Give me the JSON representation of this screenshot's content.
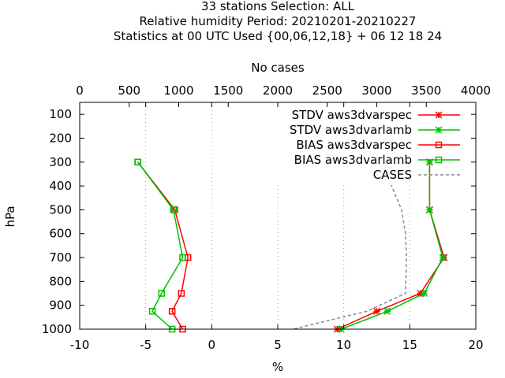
{
  "chart_data": {
    "type": "line",
    "title_lines": [
      "33 stations Selection: ALL",
      "Relative humidity  Period: 20210201-20210227",
      "Statistics at 00 UTC  Used {00,06,12,18} + 06 12 18 24"
    ],
    "xlabel": "%",
    "x2label": "No cases",
    "ylabel": "hPa",
    "xlim": [
      -10,
      20
    ],
    "x2lim": [
      0,
      4000
    ],
    "ylim": [
      1000,
      50
    ],
    "x_ticks": [
      "-10",
      "-5",
      "0",
      "5",
      "10",
      "15",
      "20"
    ],
    "x2_ticks": [
      "0",
      "500",
      "1000",
      "1500",
      "2000",
      "2500",
      "3000",
      "3500",
      "4000"
    ],
    "y_ticks": [
      "100",
      "200",
      "300",
      "400",
      "500",
      "600",
      "700",
      "800",
      "900",
      "1000"
    ],
    "grid": "dotted vertical",
    "legend_position": "top-right",
    "pressure_levels": [
      300,
      500,
      700,
      850,
      925,
      1000
    ],
    "series": [
      {
        "name": "STDV aws3dvarspec",
        "color": "#ff0000",
        "marker": "x",
        "axis": "x",
        "values": [
          16.5,
          16.5,
          17.6,
          15.8,
          12.5,
          9.5
        ]
      },
      {
        "name": "STDV aws3dvarlamb",
        "color": "#00c000",
        "marker": "x",
        "axis": "x",
        "values": [
          16.5,
          16.5,
          17.5,
          16.1,
          13.3,
          9.8
        ]
      },
      {
        "name": "BIAS aws3dvarspec",
        "color": "#ff0000",
        "marker": "square",
        "axis": "x",
        "values": [
          -5.6,
          -2.8,
          -1.8,
          -2.3,
          -3.0,
          -2.2
        ]
      },
      {
        "name": "BIAS aws3dvarlamb",
        "color": "#00c000",
        "marker": "square",
        "axis": "x",
        "values": [
          -5.6,
          -2.9,
          -2.2,
          -3.8,
          -4.5,
          -3.0
        ]
      },
      {
        "name": "CASES",
        "color": "#888888",
        "marker": "none",
        "axis": "x2",
        "dashed": true,
        "points": [
          [
            3100,
            300
          ],
          [
            3150,
            400
          ],
          [
            3250,
            500
          ],
          [
            3290,
            600
          ],
          [
            3300,
            700
          ],
          [
            3290,
            850
          ],
          [
            2900,
            925
          ],
          [
            2150,
            1000
          ]
        ]
      }
    ]
  }
}
